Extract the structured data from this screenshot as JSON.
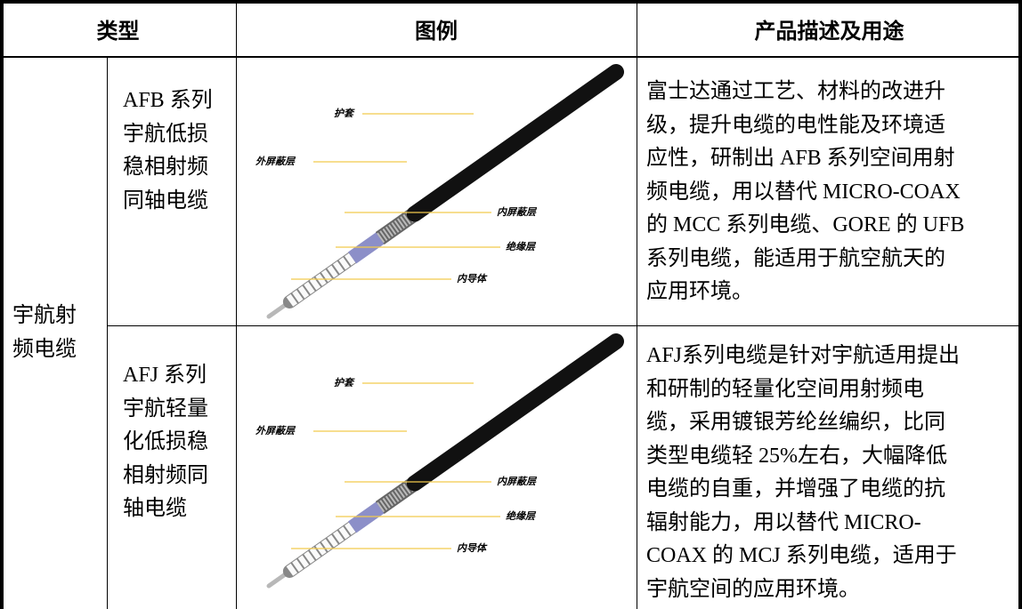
{
  "table": {
    "header": [
      "类型",
      "图例",
      "产品描述及用途"
    ],
    "category": [
      "宇航射",
      "频电缆"
    ],
    "rows": [
      {
        "name": [
          "AFB 系列",
          "宇航低损",
          "稳相射频",
          "同轴电缆"
        ],
        "figure_labels": [
          "护套",
          "外屏蔽层",
          "内屏蔽层",
          "绝缘层",
          "内导体"
        ],
        "description": [
          "富士达通过工艺、材料的改进升",
          "级，提升电缆的电性能及环境适",
          "应性，研制出 AFB 系列空间用射",
          "频电缆，用以替代 MICRO-COAX",
          "的 MCC 系列电缆、GORE 的 UFB",
          "系列电缆，能适用于航空航天的",
          "应用环境。"
        ]
      },
      {
        "name": [
          "AFJ 系列",
          "宇航轻量",
          "化低损稳",
          "相射频同",
          "轴电缆"
        ],
        "figure_labels": [
          "护套",
          "外屏蔽层",
          "内屏蔽层",
          "绝缘层",
          "内导体"
        ],
        "description": [
          "AFJ系列电缆是针对宇航适用提出",
          "和研制的轻量化空间用射频电",
          "缆，采用镀银芳纶丝编织，比同",
          "类型电缆轻 25%左右，大幅降低",
          "电缆的自重，并增强了电缆的抗",
          "辐射能力，用以替代 MICRO-",
          "COAX 的 MCJ 系列电缆，适用于",
          "宇航空间的应用环境。"
        ]
      }
    ]
  }
}
